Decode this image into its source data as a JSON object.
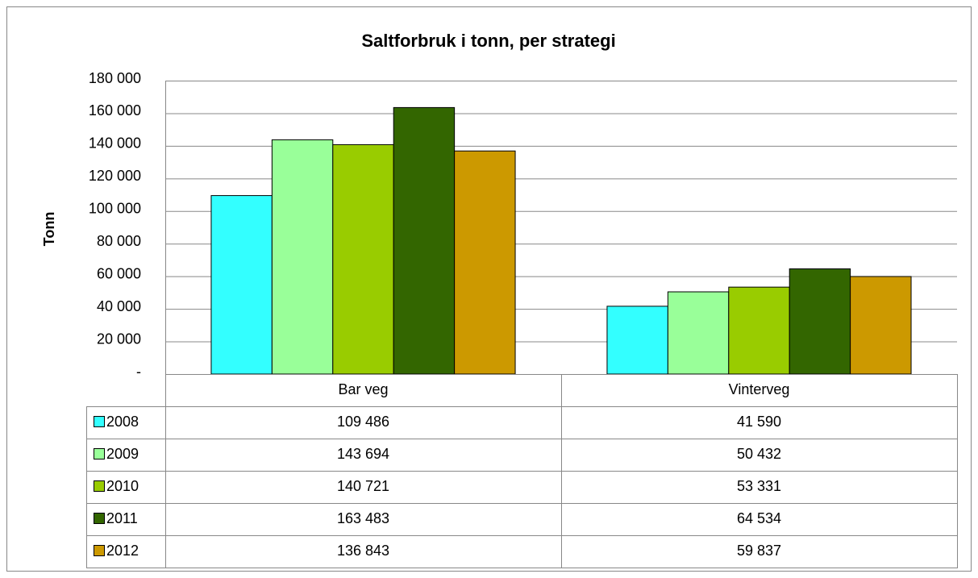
{
  "chart_data": {
    "type": "bar",
    "title": "Saltforbruk i tonn, per strategi",
    "ylabel": "Tonn",
    "categories": [
      "Bar veg",
      "Vinterveg"
    ],
    "series": [
      {
        "name": "2008",
        "color": "#33ffff",
        "values": [
          109486,
          41590
        ],
        "value_labels": [
          "109 486",
          "41 590"
        ]
      },
      {
        "name": "2009",
        "color": "#99ff99",
        "values": [
          143694,
          50432
        ],
        "value_labels": [
          "143 694",
          "50 432"
        ]
      },
      {
        "name": "2010",
        "color": "#99cc00",
        "values": [
          140721,
          53331
        ],
        "value_labels": [
          "140 721",
          "53 331"
        ]
      },
      {
        "name": "2011",
        "color": "#336600",
        "values": [
          163483,
          64534
        ],
        "value_labels": [
          "163 483",
          "64 534"
        ]
      },
      {
        "name": "2012",
        "color": "#cc9900",
        "values": [
          136843,
          59837
        ],
        "value_labels": [
          "136 843",
          "59 837"
        ]
      }
    ],
    "ylim": [
      0,
      180000
    ],
    "yticks": [
      {
        "value": 0,
        "label": "-"
      },
      {
        "value": 20000,
        "label": "20 000"
      },
      {
        "value": 40000,
        "label": "40 000"
      },
      {
        "value": 60000,
        "label": "60 000"
      },
      {
        "value": 80000,
        "label": "80 000"
      },
      {
        "value": 100000,
        "label": "100 000"
      },
      {
        "value": 120000,
        "label": "120 000"
      },
      {
        "value": 140000,
        "label": "140 000"
      },
      {
        "value": 160000,
        "label": "160 000"
      },
      {
        "value": 180000,
        "label": "180 000"
      }
    ],
    "grid": true
  }
}
